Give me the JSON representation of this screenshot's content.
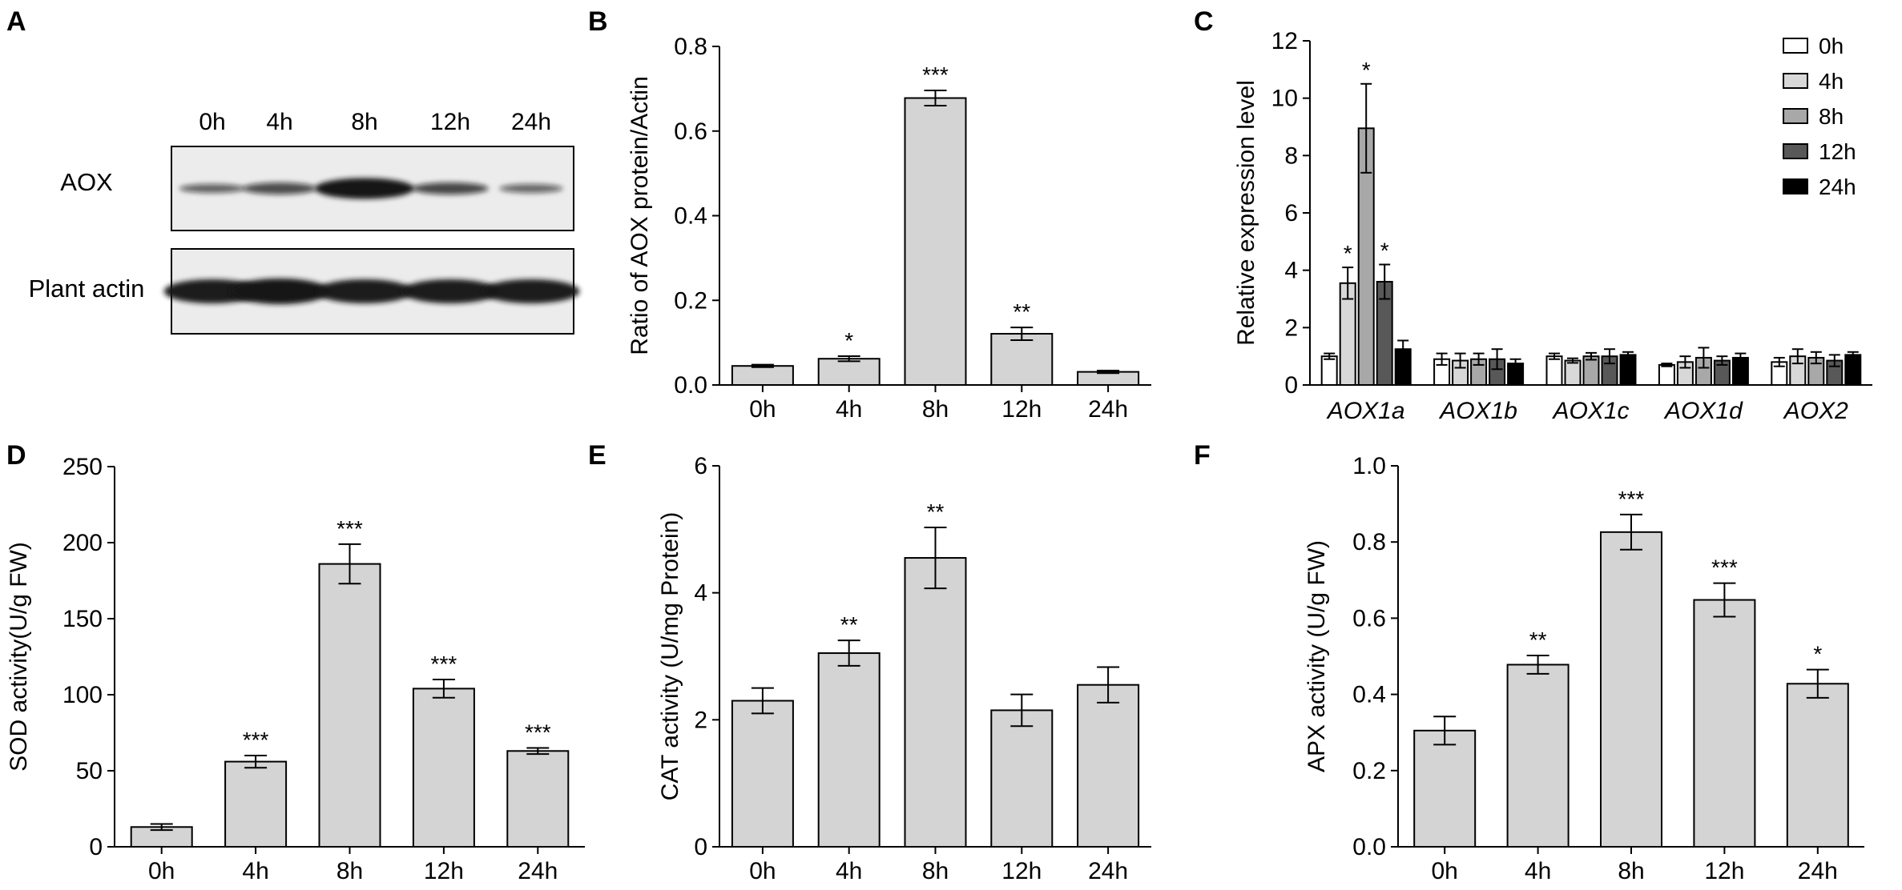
{
  "colors": {
    "bar_fill": "#d4d4d4",
    "stroke": "#000000",
    "series": [
      "#ffffff",
      "#d8d8d8",
      "#a8a8a8",
      "#585858",
      "#000000"
    ],
    "blot_bg": "#ececec",
    "band": "#141414"
  },
  "western_blot": {
    "letter": "A",
    "lanes": [
      "0h",
      "4h",
      "8h",
      "12h",
      "24h"
    ],
    "rows": [
      {
        "label": "AOX",
        "band_intensity": [
          0.35,
          0.5,
          1.0,
          0.55,
          0.3
        ]
      },
      {
        "label": "Plant actin",
        "band_intensity": [
          0.95,
          1.0,
          0.95,
          0.95,
          0.95
        ]
      }
    ]
  },
  "chart_data": [
    {
      "id": "B",
      "letter": "B",
      "type": "bar",
      "categories": [
        "0h",
        "4h",
        "8h",
        "12h",
        "24h"
      ],
      "values": [
        0.045,
        0.062,
        0.678,
        0.121,
        0.031
      ],
      "errors": [
        0.003,
        0.006,
        0.018,
        0.015,
        0.003
      ],
      "significance": [
        "",
        "*",
        "***",
        "**",
        ""
      ],
      "ylabel": "Ratio of AOX protein/Actin",
      "ylim": [
        0,
        0.8
      ],
      "yticks": [
        0,
        0.2,
        0.4,
        0.6,
        0.8
      ],
      "ytick_labels": [
        "0.0",
        "0.2",
        "0.4",
        "0.6",
        "0.8"
      ]
    },
    {
      "id": "C",
      "letter": "C",
      "type": "grouped-bar",
      "categories": [
        "AOX1a",
        "AOX1b",
        "AOX1c",
        "AOX1d",
        "AOX2"
      ],
      "series": [
        {
          "name": "0h",
          "values": [
            1.0,
            0.9,
            1.0,
            0.7,
            0.8
          ],
          "errors": [
            0.1,
            0.2,
            0.1,
            0.05,
            0.15
          ],
          "significance": [
            "",
            "",
            "",
            "",
            ""
          ]
        },
        {
          "name": "4h",
          "values": [
            3.55,
            0.85,
            0.85,
            0.8,
            1.0
          ],
          "errors": [
            0.55,
            0.25,
            0.08,
            0.2,
            0.25
          ],
          "significance": [
            "*",
            "",
            "",
            "",
            ""
          ]
        },
        {
          "name": "8h",
          "values": [
            8.95,
            0.9,
            1.0,
            0.95,
            0.95
          ],
          "errors": [
            1.55,
            0.2,
            0.12,
            0.35,
            0.2
          ],
          "significance": [
            "*",
            "",
            "",
            "",
            ""
          ]
        },
        {
          "name": "12h",
          "values": [
            3.6,
            0.9,
            1.0,
            0.85,
            0.85
          ],
          "errors": [
            0.6,
            0.35,
            0.25,
            0.15,
            0.2
          ],
          "significance": [
            "*",
            "",
            "",
            "",
            ""
          ]
        },
        {
          "name": "24h",
          "values": [
            1.25,
            0.75,
            1.05,
            0.95,
            1.05
          ],
          "errors": [
            0.3,
            0.15,
            0.1,
            0.15,
            0.1
          ],
          "significance": [
            "",
            "",
            "",
            "",
            ""
          ]
        }
      ],
      "ylabel": "Relative expression level",
      "ylim": [
        0,
        12
      ],
      "yticks": [
        0,
        2,
        4,
        6,
        8,
        10,
        12
      ],
      "ytick_labels": [
        "0",
        "2",
        "4",
        "6",
        "8",
        "10",
        "12"
      ],
      "legend_position": "top-right"
    },
    {
      "id": "D",
      "letter": "D",
      "type": "bar",
      "categories": [
        "0h",
        "4h",
        "8h",
        "12h",
        "24h"
      ],
      "values": [
        13,
        56,
        186,
        104,
        63
      ],
      "errors": [
        2,
        4,
        13,
        6,
        2
      ],
      "significance": [
        "",
        "***",
        "***",
        "***",
        "***"
      ],
      "ylabel": "SOD activity(U/g FW)",
      "ylim": [
        0,
        250
      ],
      "yticks": [
        0,
        50,
        100,
        150,
        200,
        250
      ],
      "ytick_labels": [
        "0",
        "50",
        "100",
        "150",
        "200",
        "250"
      ]
    },
    {
      "id": "E",
      "letter": "E",
      "type": "bar",
      "categories": [
        "0h",
        "4h",
        "8h",
        "12h",
        "24h"
      ],
      "values": [
        2.3,
        3.05,
        4.55,
        2.15,
        2.55
      ],
      "errors": [
        0.2,
        0.2,
        0.48,
        0.25,
        0.28
      ],
      "significance": [
        "",
        "**",
        "**",
        "",
        ""
      ],
      "ylabel": "CAT activity (U/mg Protein)",
      "ylim": [
        0,
        6
      ],
      "yticks": [
        0,
        2,
        4,
        6
      ],
      "ytick_labels": [
        "0",
        "2",
        "4",
        "6"
      ]
    },
    {
      "id": "F",
      "letter": "F",
      "type": "bar",
      "categories": [
        "0h",
        "4h",
        "8h",
        "12h",
        "24h"
      ],
      "values": [
        0.305,
        0.478,
        0.826,
        0.648,
        0.428
      ],
      "errors": [
        0.037,
        0.024,
        0.046,
        0.044,
        0.037
      ],
      "significance": [
        "",
        "**",
        "***",
        "***",
        "*"
      ],
      "ylabel": "APX activity (U/g FW)",
      "ylim": [
        0,
        1.0
      ],
      "yticks": [
        0,
        0.2,
        0.4,
        0.6,
        0.8,
        1.0
      ],
      "ytick_labels": [
        "0.0",
        "0.2",
        "0.4",
        "0.6",
        "0.8",
        "1.0"
      ]
    }
  ]
}
